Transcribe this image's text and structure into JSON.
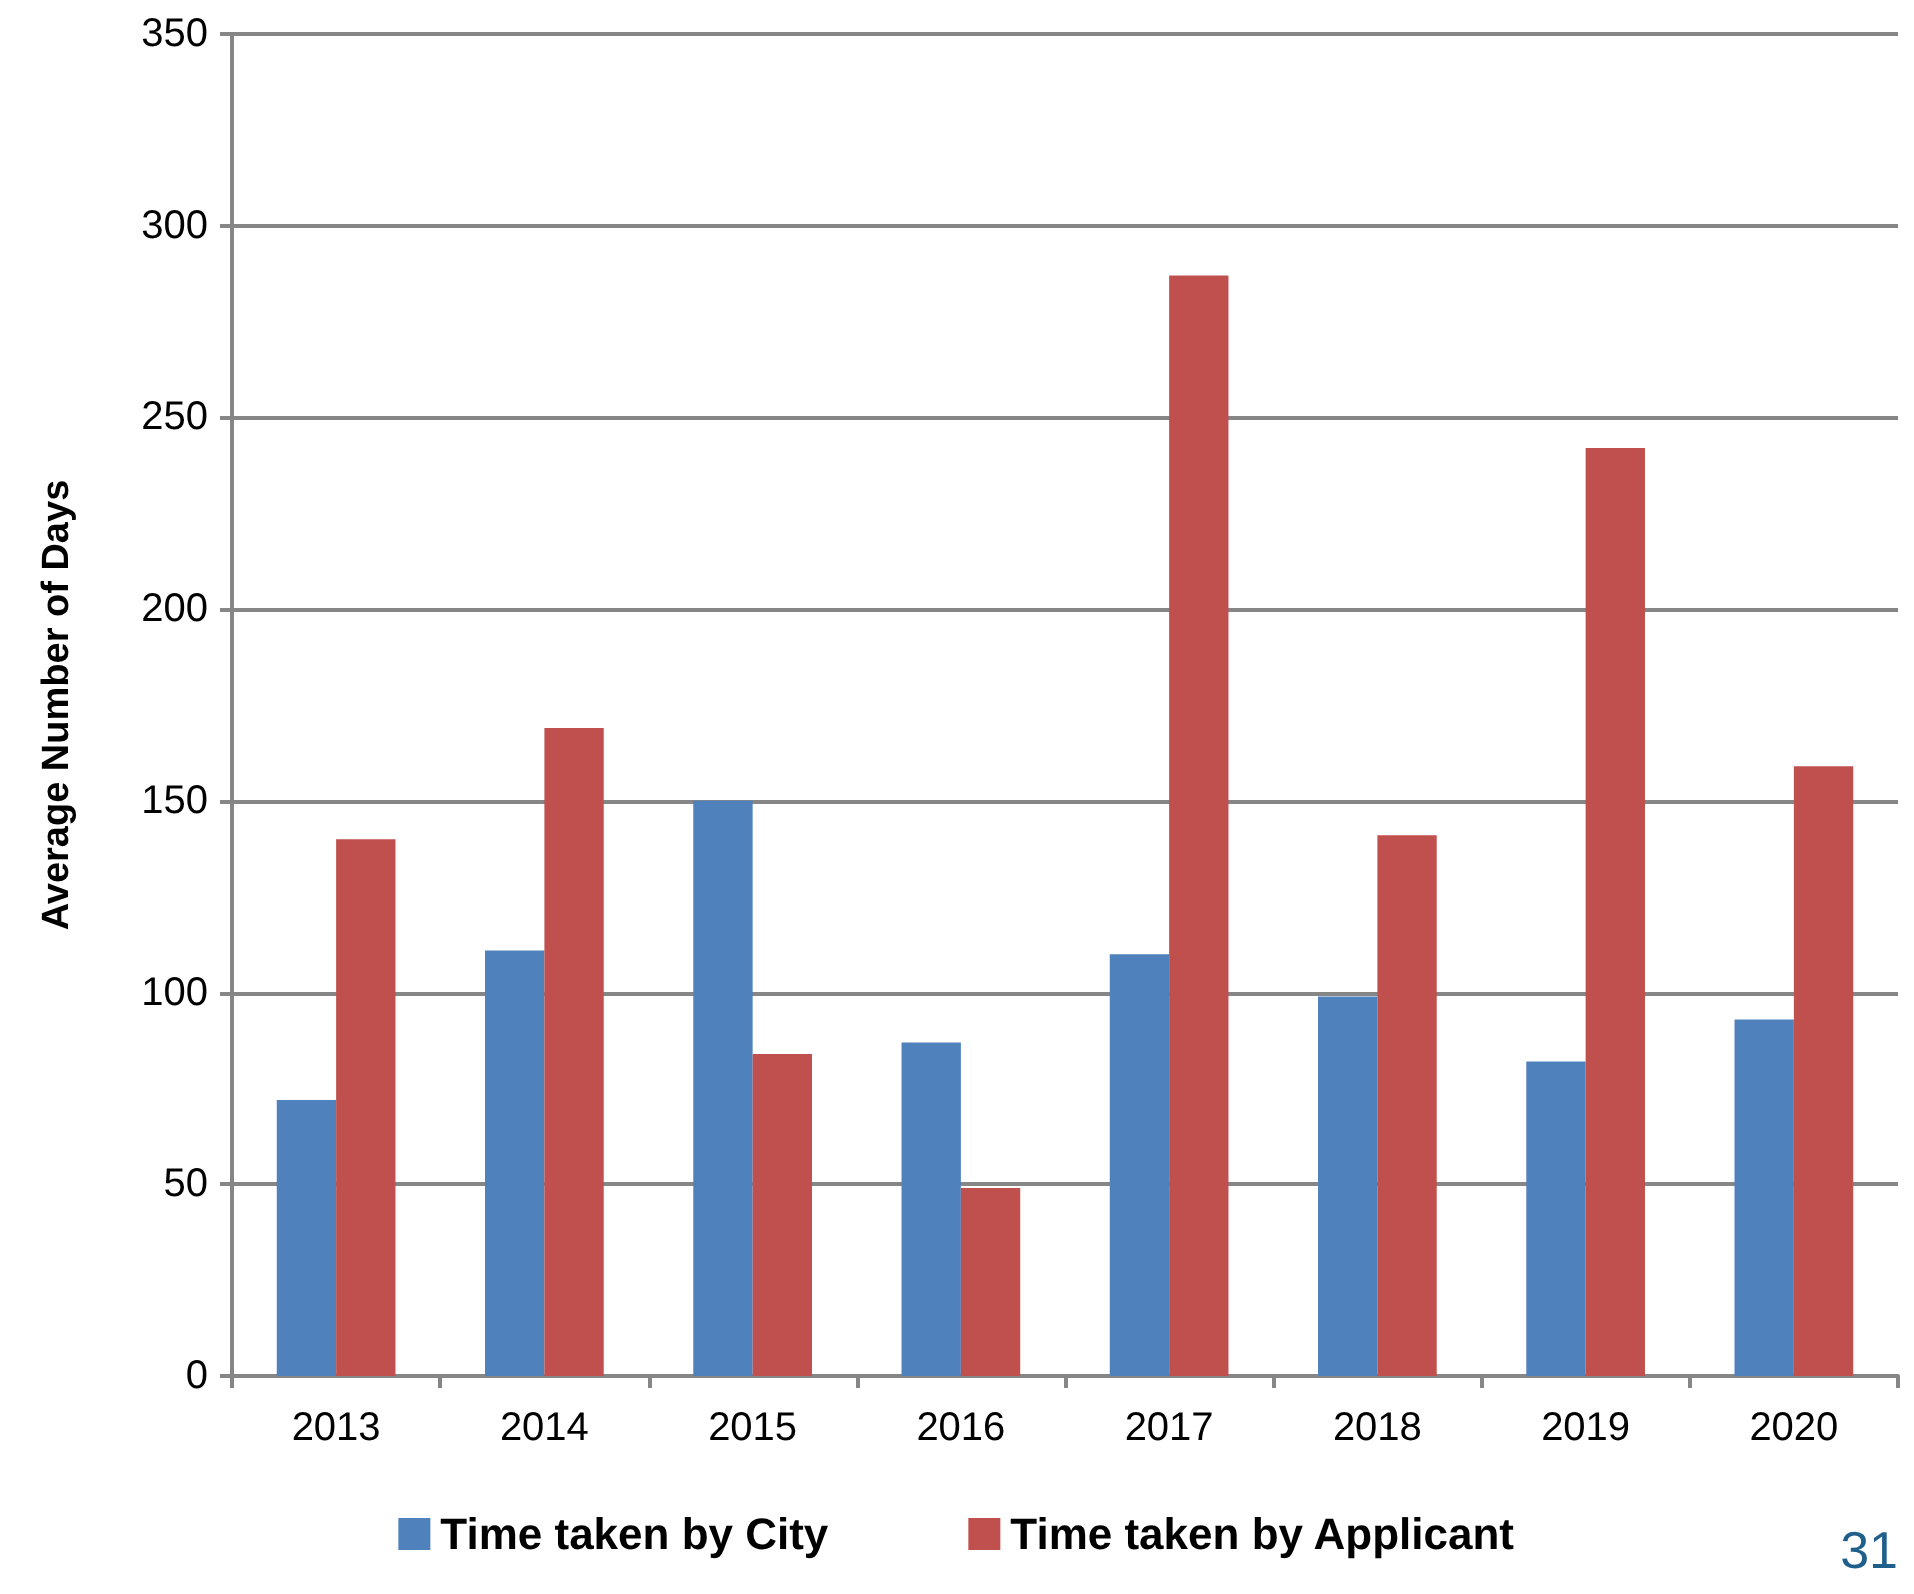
{
  "chart_data": {
    "type": "bar",
    "ylabel": "Average Number of Days",
    "categories": [
      "2013",
      "2014",
      "2015",
      "2016",
      "2017",
      "2018",
      "2019",
      "2020"
    ],
    "series": [
      {
        "name": "Time taken by City",
        "color": "#4f81bd",
        "values": [
          72,
          111,
          150,
          87,
          110,
          99,
          82,
          93
        ]
      },
      {
        "name": "Time taken by Applicant",
        "color": "#c0504d",
        "values": [
          140,
          169,
          84,
          49,
          287,
          141,
          242,
          159
        ]
      }
    ],
    "ylim": [
      0,
      350
    ],
    "yticks": [
      0,
      50,
      100,
      150,
      200,
      250,
      300,
      350
    ],
    "grid": "y",
    "legend": "bottom",
    "annotations": [
      "31"
    ]
  }
}
